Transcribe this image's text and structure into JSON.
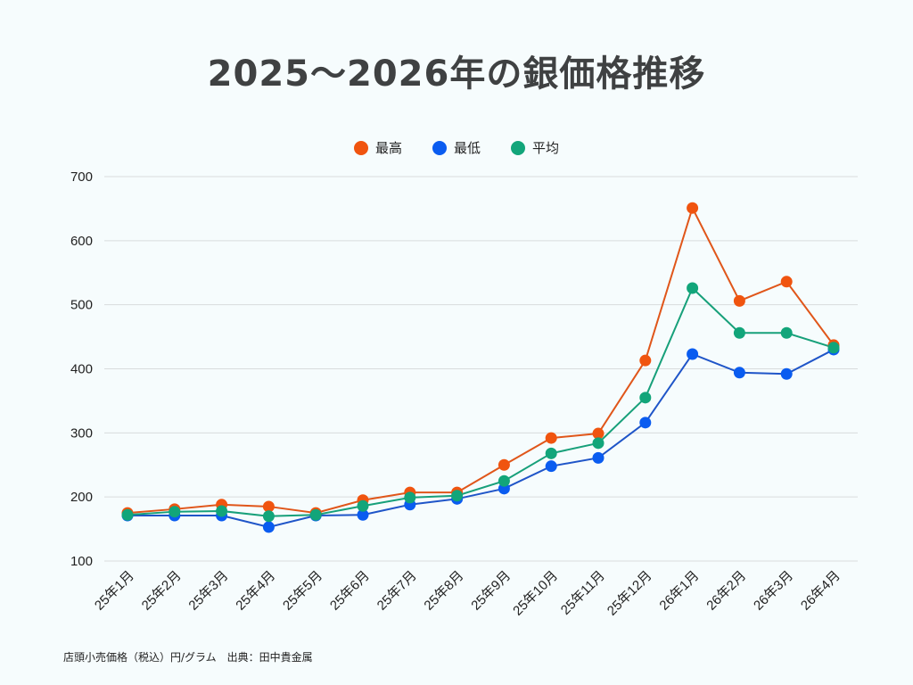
{
  "chart_data": {
    "type": "line",
    "title": "2025～2026年の銀価格推移",
    "categories": [
      "25年1月",
      "25年2月",
      "25年3月",
      "25年4月",
      "25年5月",
      "25年6月",
      "25年7月",
      "25年8月",
      "25年9月",
      "25年10月",
      "25年11月",
      "25年12月",
      "26年1月",
      "26年2月",
      "26年3月",
      "26年4月"
    ],
    "series": [
      {
        "name": "最高",
        "color": "#f0540f",
        "values": [
          175,
          181,
          188,
          185,
          175,
          195,
          207,
          207,
          250,
          292,
          299,
          413,
          651,
          506,
          536,
          437
        ]
      },
      {
        "name": "最低",
        "color": "#0a5cf0",
        "values": [
          171,
          171,
          171,
          153,
          171,
          172,
          188,
          197,
          213,
          248,
          261,
          316,
          423,
          394,
          392,
          430
        ]
      },
      {
        "name": "平均",
        "color": "#12a57a",
        "values": [
          172,
          177,
          178,
          170,
          172,
          186,
          199,
          202,
          225,
          268,
          284,
          355,
          526,
          456,
          456,
          433
        ]
      }
    ],
    "ylim": [
      100,
      700
    ],
    "yticks": [
      100,
      200,
      300,
      400,
      500,
      600,
      700
    ],
    "grid": true,
    "legend_position": "top",
    "xlabel": "",
    "ylabel": "",
    "footnote": "店頭小売価格（税込）円/グラム　出典：田中貴金属"
  }
}
